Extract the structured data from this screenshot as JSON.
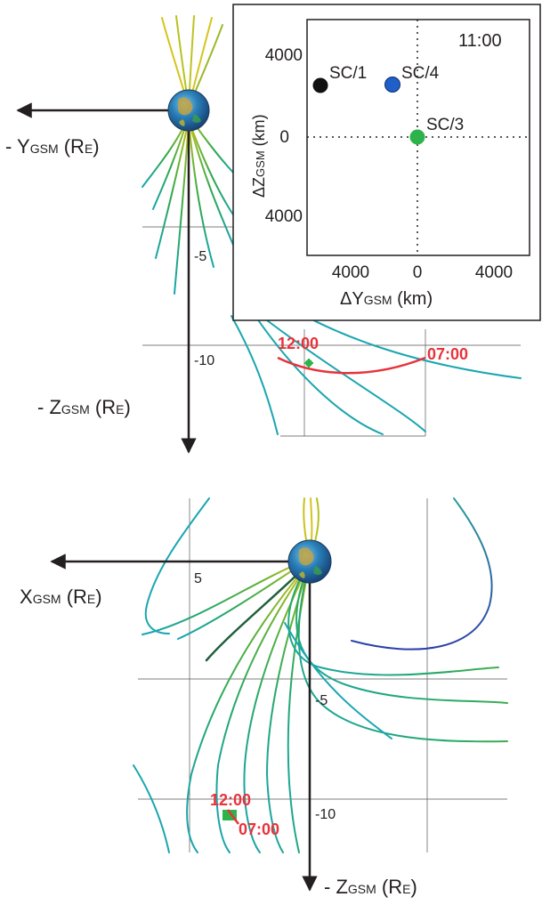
{
  "top_panel": {
    "y_axis_label": "- Y",
    "y_axis_sub": "GSM",
    "y_axis_unit": " (R",
    "y_axis_unit_sub": "E",
    "y_axis_close": ")",
    "z_axis_label": "- Z",
    "z_axis_sub": "GSM",
    "z_axis_unit": " (R",
    "z_axis_unit_sub": "E",
    "z_axis_close": ")",
    "tick_minus5": "-5",
    "tick_minus10": "-10",
    "time_start": "12:00",
    "time_end": "07:00"
  },
  "inset": {
    "time": "11:00",
    "y_tick_upper": "4000",
    "y_tick_zero": "0",
    "y_tick_lower": "4000",
    "x_tick_left": "4000",
    "x_tick_zero": "0",
    "x_tick_right": "4000",
    "xlabel": "ΔY",
    "xlabel_sub": "GSM",
    "xlabel_unit": " (km)",
    "ylabel": "ΔZ",
    "ylabel_sub": "GSM",
    "ylabel_unit": " (km)",
    "spacecraft": [
      {
        "label": "SC/1",
        "color": "#111111"
      },
      {
        "label": "SC/4",
        "color": "#1f5fc8"
      },
      {
        "label": "SC/3",
        "color": "#2db34a"
      }
    ]
  },
  "bottom_panel": {
    "x_axis_label": "X",
    "x_axis_sub": "GSM",
    "x_axis_unit": " (R",
    "x_axis_unit_sub": "E",
    "x_axis_close": ")",
    "z_axis_label": "- Z",
    "z_axis_sub": "GSM",
    "z_axis_unit": " (R",
    "z_axis_unit_sub": "E",
    "z_axis_close": ")",
    "tick_5": "5",
    "tick_minus5": "-5",
    "tick_minus10": "-10",
    "time_start": "12:00",
    "time_end": "07:00"
  },
  "colors": {
    "axis": "#231f20",
    "grid": "#555555",
    "trajectory": "#e8323c",
    "field_line_near": "#c9c21e",
    "field_line_mid": "#3aa83a",
    "field_line_far": "#1aa6b0"
  }
}
